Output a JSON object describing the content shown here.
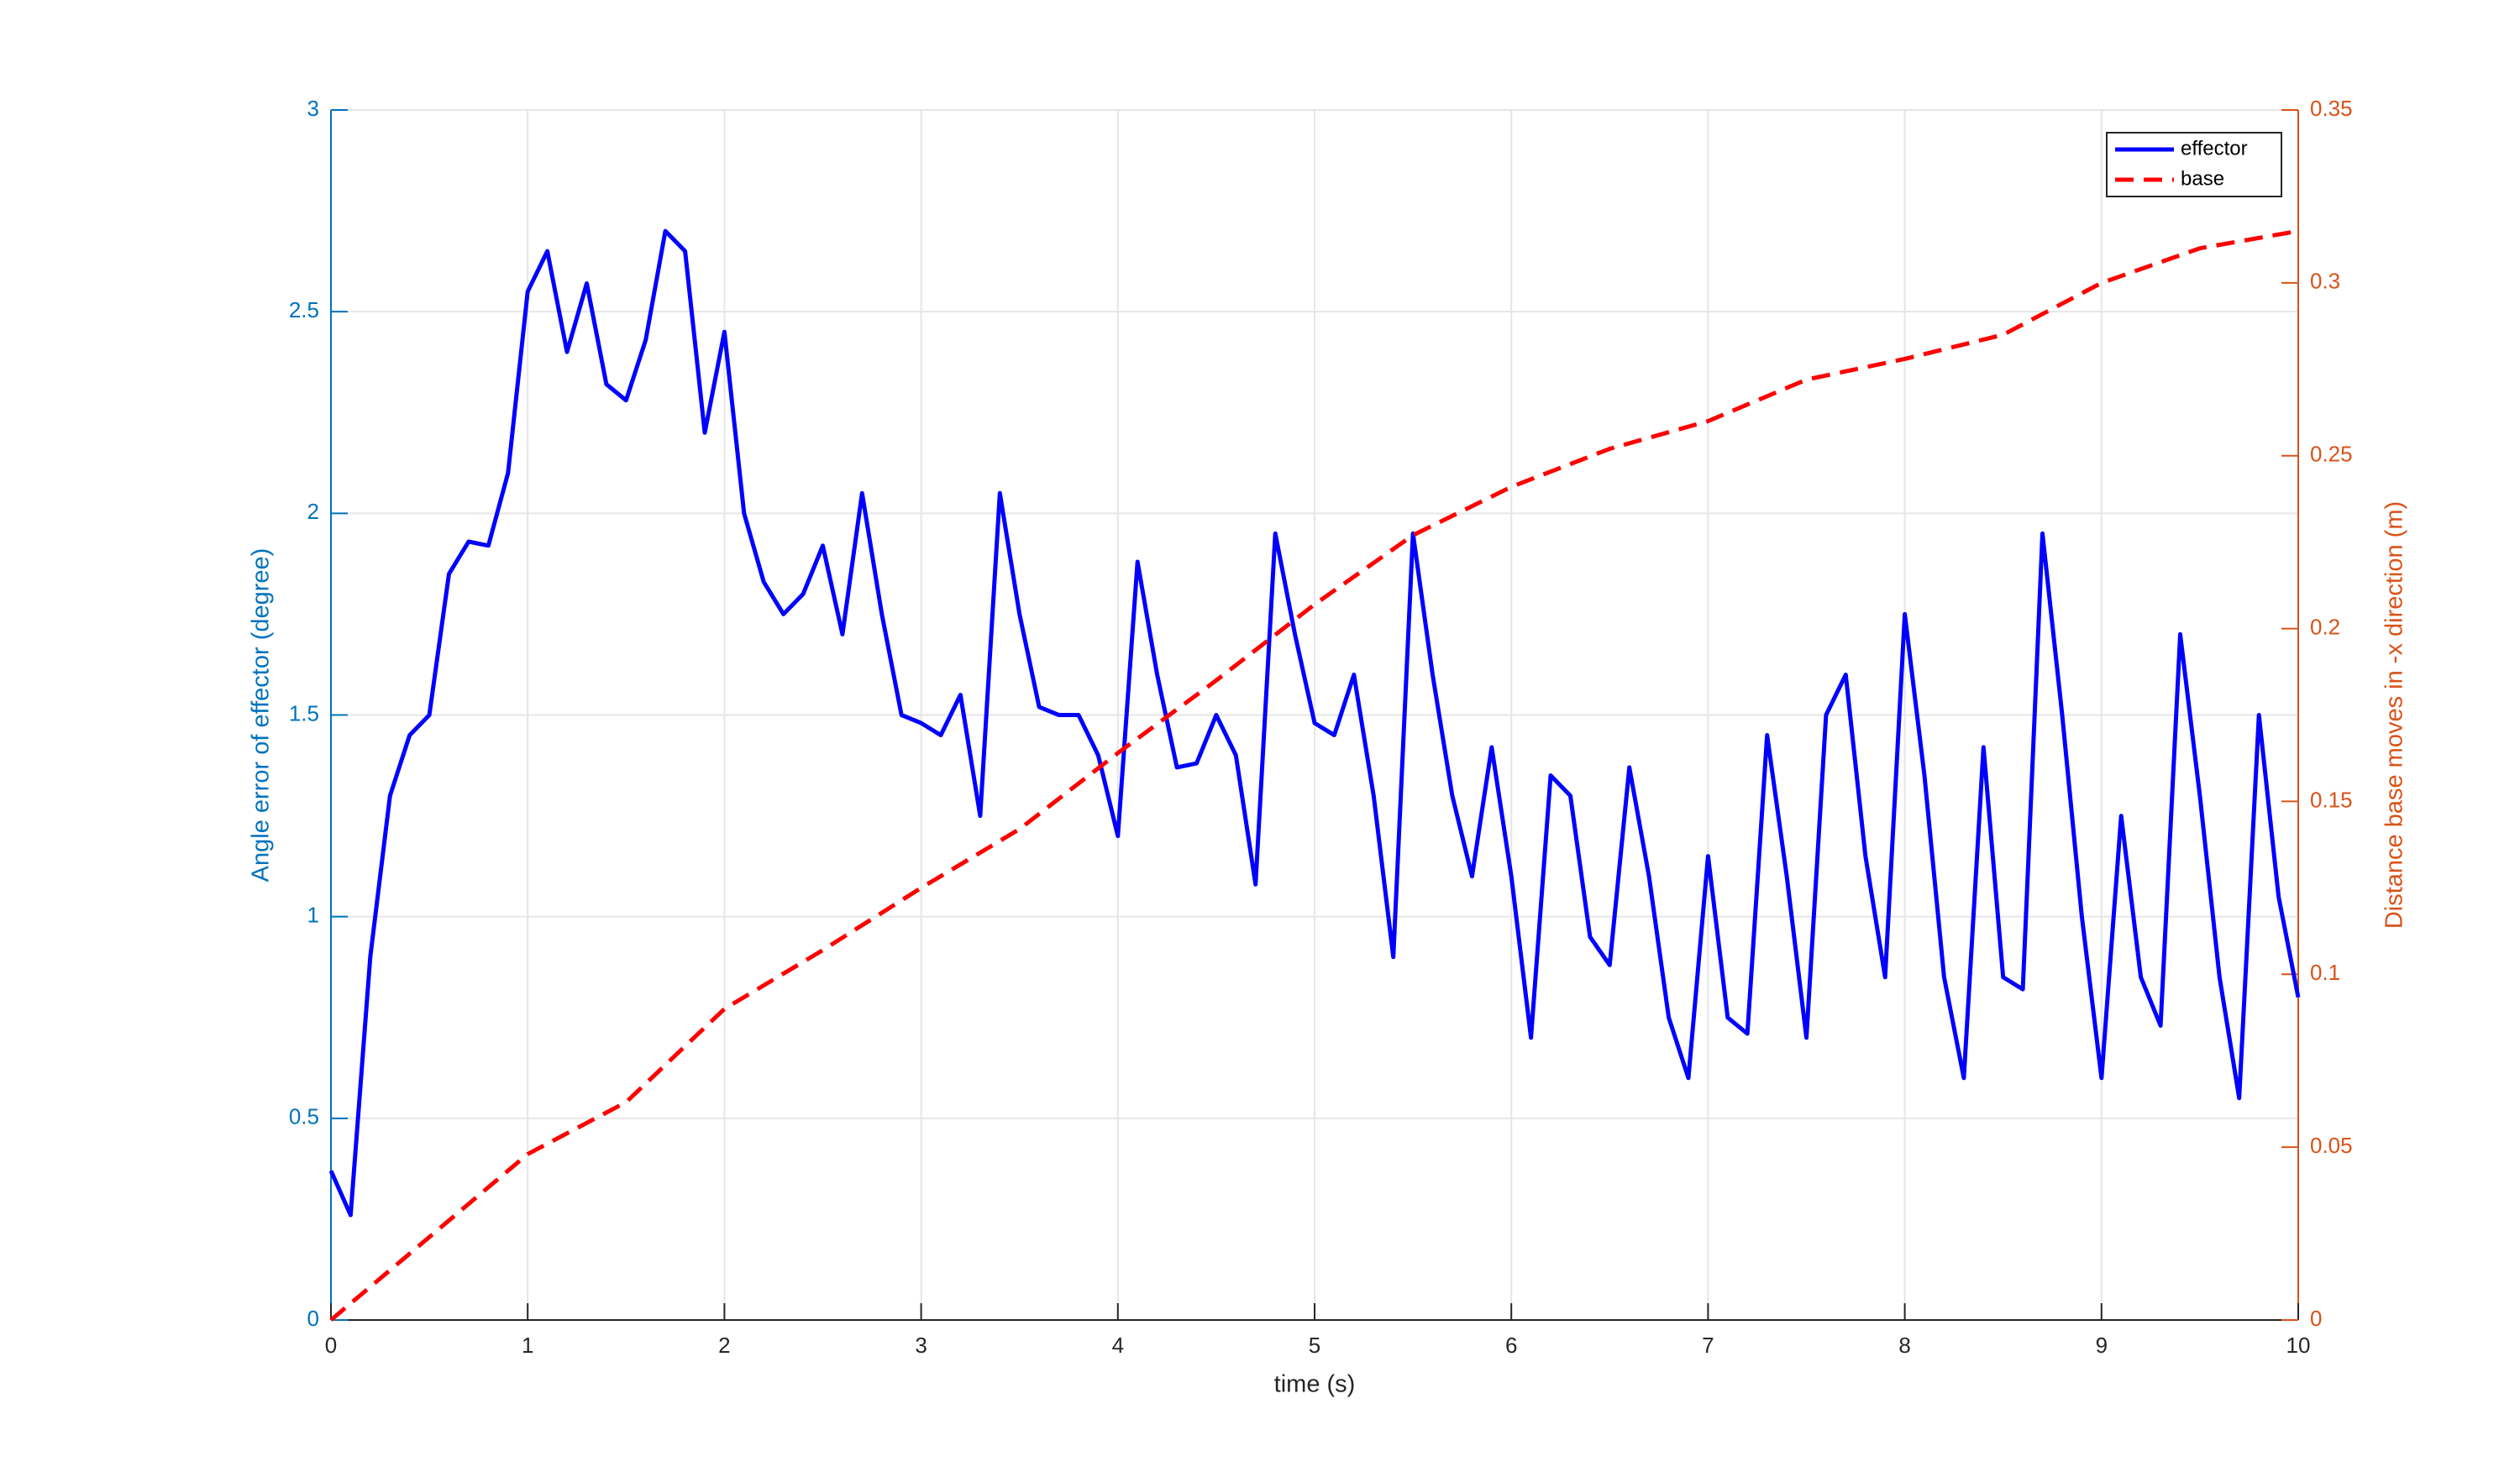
{
  "chart_data": {
    "type": "line",
    "xlabel": "time (s)",
    "ylabel": "Angle error of effector (degree)",
    "y2label": "Distance base moves in -x direction (m)",
    "xlim": [
      0,
      10
    ],
    "xticks": [
      0,
      1,
      2,
      3,
      4,
      5,
      6,
      7,
      8,
      9,
      10
    ],
    "ylim": [
      0,
      3
    ],
    "yticks": [
      0,
      0.5,
      1,
      1.5,
      2,
      2.5,
      3
    ],
    "y2lim": [
      0,
      0.35
    ],
    "y2ticks": [
      0,
      0.05,
      0.1,
      0.15,
      0.2,
      0.25,
      0.3,
      0.35
    ],
    "grid": true,
    "legend": "upper right",
    "ycolor": "#0072bd",
    "y2color": "#d95319",
    "series": [
      {
        "name": "effector",
        "color": "#0000ff",
        "dash": false,
        "x": [
          0,
          0.1,
          0.2,
          0.3,
          0.4,
          0.5,
          0.6,
          0.7,
          0.8,
          0.9,
          1,
          1.1,
          1.2,
          1.3,
          1.4,
          1.5,
          1.6,
          1.7,
          1.8,
          1.9,
          2,
          2.1,
          2.2,
          2.3,
          2.4,
          2.5,
          2.6,
          2.7,
          2.8,
          2.9,
          3,
          3.1,
          3.2,
          3.3,
          3.4,
          3.5,
          3.6,
          3.7,
          3.8,
          3.9,
          4,
          4.1,
          4.2,
          4.3,
          4.4,
          4.5,
          4.6,
          4.7,
          4.8,
          4.9,
          5,
          5.1,
          5.2,
          5.3,
          5.4,
          5.5,
          5.6,
          5.7,
          5.8,
          5.9,
          6,
          6.1,
          6.2,
          6.3,
          6.4,
          6.5,
          6.6,
          6.7,
          6.8,
          6.9,
          7,
          7.1,
          7.2,
          7.3,
          7.4,
          7.5,
          7.6,
          7.7,
          7.8,
          7.9,
          8,
          8.1,
          8.2,
          8.3,
          8.4,
          8.5,
          8.6,
          8.7,
          8.8,
          8.9,
          9,
          9.1,
          9.2,
          9.3,
          9.4,
          9.5,
          9.6,
          9.7,
          9.8,
          9.9,
          10
        ],
        "values": [
          0.37,
          0.26,
          0.9,
          1.3,
          1.45,
          1.5,
          1.85,
          1.93,
          1.92,
          2.1,
          2.55,
          2.65,
          2.4,
          2.57,
          2.32,
          2.28,
          2.43,
          2.7,
          2.65,
          2.2,
          2.45,
          2.0,
          1.83,
          1.75,
          1.8,
          1.92,
          1.7,
          2.05,
          1.75,
          1.5,
          1.48,
          1.45,
          1.55,
          1.25,
          2.05,
          1.75,
          1.52,
          1.5,
          1.5,
          1.4,
          1.2,
          1.88,
          1.6,
          1.37,
          1.38,
          1.5,
          1.4,
          1.08,
          1.95,
          1.7,
          1.48,
          1.45,
          1.6,
          1.3,
          0.9,
          1.95,
          1.6,
          1.3,
          1.1,
          1.42,
          1.1,
          0.7,
          1.35,
          1.3,
          0.95,
          0.88,
          1.37,
          1.1,
          0.75,
          0.6,
          1.15,
          0.75,
          0.71,
          1.45,
          1.1,
          0.7,
          1.5,
          1.6,
          1.15,
          0.85,
          1.75,
          1.35,
          0.85,
          0.6,
          1.42,
          0.85,
          0.82,
          1.95,
          1.5,
          1.0,
          0.6,
          1.25,
          0.85,
          0.73,
          1.7,
          1.3,
          0.85,
          0.55,
          1.5,
          1.05,
          0.8
        ]
      },
      {
        "name": "base",
        "color": "#ff0000",
        "dash": true,
        "axis": "y2",
        "x": [
          0,
          0.5,
          1,
          1.5,
          2,
          2.5,
          3,
          3.5,
          4,
          4.5,
          5,
          5.5,
          6,
          6.5,
          7,
          7.5,
          8,
          8.5,
          9,
          9.5,
          10
        ],
        "values": [
          0,
          0.024,
          0.048,
          0.063,
          0.09,
          0.107,
          0.125,
          0.142,
          0.164,
          0.185,
          0.207,
          0.227,
          0.241,
          0.252,
          0.26,
          0.272,
          0.278,
          0.285,
          0.3,
          0.31,
          0.315
        ]
      }
    ]
  }
}
